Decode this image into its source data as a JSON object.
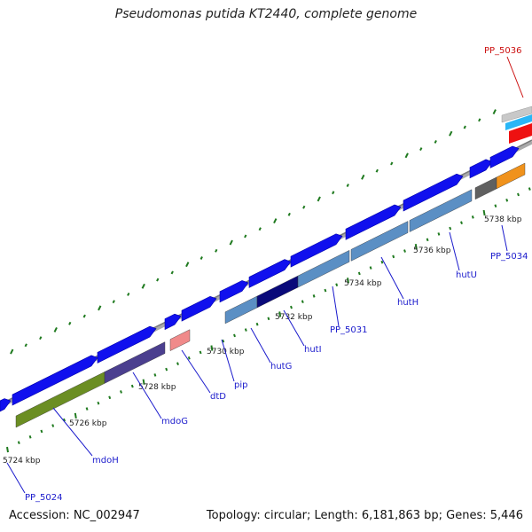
{
  "title": "Pseudomonas putida KT2440, complete genome",
  "footer": {
    "accession": "Accession: NC_002947",
    "summary": "Topology: circular; Length: 6,181,863 bp; Genes: 5,446"
  },
  "scale_labels": [
    {
      "kbp": 5724,
      "text": "5724 kbp"
    },
    {
      "kbp": 5726,
      "text": "5726 kbp"
    },
    {
      "kbp": 5728,
      "text": "5728 kbp"
    },
    {
      "kbp": 5730,
      "text": "5730 kbp"
    },
    {
      "kbp": 5732,
      "text": "5732 kbp"
    },
    {
      "kbp": 5734,
      "text": "5734 kbp"
    },
    {
      "kbp": 5736,
      "text": "5736 kbp"
    },
    {
      "kbp": 5738,
      "text": "5738 kbp"
    }
  ],
  "gene_labels": [
    {
      "text": "PP_5024",
      "color": "#1a1acc"
    },
    {
      "text": "mdoH",
      "color": "#1a1acc"
    },
    {
      "text": "mdoG",
      "color": "#1a1acc"
    },
    {
      "text": "dtD",
      "color": "#1a1acc"
    },
    {
      "text": "pip",
      "color": "#1a1acc"
    },
    {
      "text": "hutG",
      "color": "#1a1acc"
    },
    {
      "text": "hutI",
      "color": "#1a1acc"
    },
    {
      "text": "PP_5031",
      "color": "#1a1acc"
    },
    {
      "text": "hutH",
      "color": "#1a1acc"
    },
    {
      "text": "hutU",
      "color": "#1a1acc"
    },
    {
      "text": "PP_5034",
      "color": "#1a1acc"
    },
    {
      "text": "PP_5036",
      "color": "#cc1111"
    }
  ],
  "colors": {
    "cds": "#1010ee",
    "backbone": "#999999",
    "tick": "#1f7a1f",
    "cog_green": "#6b8e23",
    "cog_purple": "#4b3f8f",
    "cog_steel": "#5b8fc4",
    "cog_navy": "#0a0a7a",
    "cog_pink": "#f08a8a",
    "cog_orange": "#f0921c",
    "cog_grey": "#606060",
    "cog_cyan": "#29b6f6",
    "cog_red": "#ee1111",
    "cog_silver": "#c8c8c8"
  }
}
